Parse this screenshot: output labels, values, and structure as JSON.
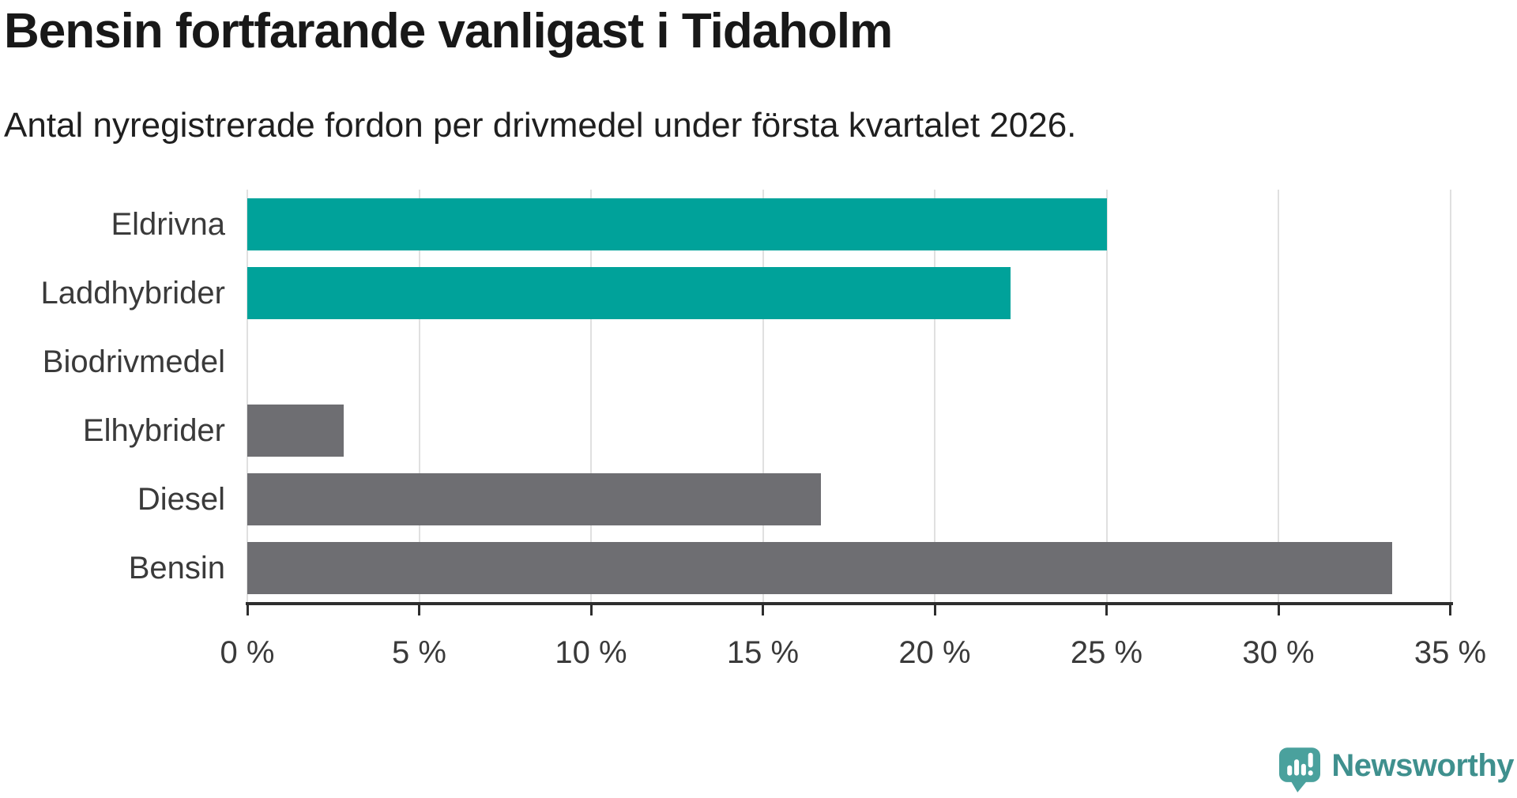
{
  "page": {
    "background": "#ffffff"
  },
  "header": {
    "title": "Bensin fortfarande vanligast i Tidaholm",
    "subtitle": "Antal nyregistrerade fordon per drivmedel under första kvartalet 2026."
  },
  "chart_data": {
    "type": "bar",
    "orientation": "horizontal",
    "title": "Bensin fortfarande vanligast i Tidaholm",
    "subtitle": "Antal nyregistrerade fordon per drivmedel under första kvartalet 2026.",
    "categories": [
      "Eldrivna",
      "Laddhybrider",
      "Biodrivmedel",
      "Elhybrider",
      "Diesel",
      "Bensin"
    ],
    "values": [
      25,
      22.2,
      0,
      2.8,
      16.7,
      33.3
    ],
    "unit": "%",
    "bar_colors": [
      "#00a29a",
      "#00a29a",
      "#6e6e72",
      "#6e6e72",
      "#6e6e72",
      "#6e6e72"
    ],
    "highlight_color": "#00a29a",
    "default_color": "#6e6e72",
    "xlabel": "",
    "ylabel": "",
    "xlim": [
      0,
      35
    ],
    "x_ticks": [
      0,
      5,
      10,
      15,
      20,
      25,
      30,
      35
    ],
    "x_tick_labels": [
      "0 %",
      "5 %",
      "10 %",
      "15 %",
      "20 %",
      "25 %",
      "30 %",
      "35 %"
    ],
    "grid": "vertical-gridlines",
    "legend": "none"
  },
  "footer": {
    "brand": "Newsworthy",
    "brand_color": "#3f908e",
    "icon": "newsworthy-logo-icon",
    "icon_color": "#4aa19d"
  }
}
